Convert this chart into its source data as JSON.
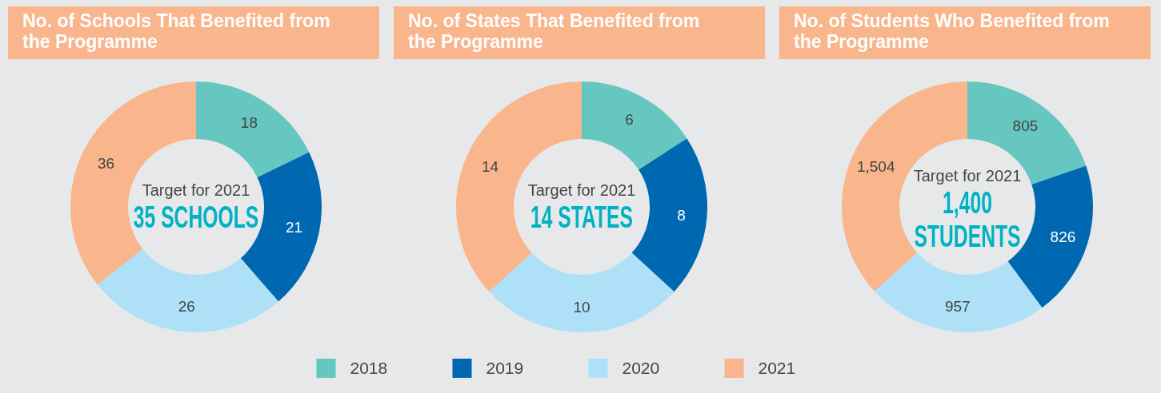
{
  "chart_data": [
    {
      "type": "donut",
      "title": "No. of Schools That Benefited from the Programme",
      "categories": [
        "2018",
        "2019",
        "2020",
        "2021"
      ],
      "values": [
        18,
        21,
        26,
        36
      ],
      "colors": [
        "#66c6c0",
        "#0068b0",
        "#aee0f8",
        "#f9b58c"
      ],
      "data_labels": true,
      "legend": "bottom",
      "annotations": [
        "Target for 2021",
        "35 SCHOOLS"
      ]
    },
    {
      "type": "donut",
      "title": "No. of States That Benefited from the Programme",
      "values": [
        6,
        8,
        10,
        14
      ],
      "colors": [
        "#66c6c0",
        "#0068b0",
        "#aee0f8",
        "#f9b58c"
      ],
      "data_labels": true,
      "annotations": [
        "Target for 2021",
        "14 STATES"
      ]
    },
    {
      "type": "donut",
      "title": "No. of Students Who Benefited from the Programme",
      "values": [
        805,
        826,
        957,
        1504
      ],
      "colors": [
        "#66c6c0",
        "#0068b0",
        "#aee0f8",
        "#f9b58c"
      ],
      "data_labels": true,
      "value_labels": [
        "805",
        "826",
        "957",
        "1,504"
      ],
      "annotations": [
        "Target for 2021",
        "1,400 STUDENTS"
      ]
    }
  ]
}
